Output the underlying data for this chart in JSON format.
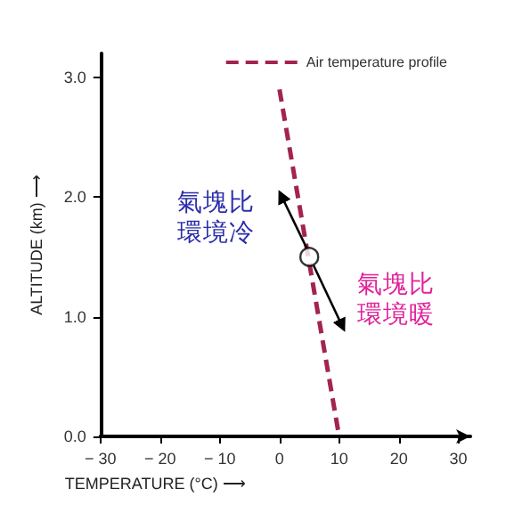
{
  "chart_data": {
    "type": "line",
    "xlabel": "TEMPERATURE (°C) ⟶",
    "ylabel": "ALTITUDE (km) ⟶",
    "series": [
      {
        "name": "Air temperature profile",
        "color": "#a3244f",
        "x": [
          0,
          10
        ],
        "values": [
          2.9,
          0
        ],
        "marker": "none",
        "line_style": "dashed"
      },
      {
        "type": "scatter",
        "color": "#000000",
        "x": [
          5
        ],
        "values": [
          1.5
        ],
        "marker": "circle"
      }
    ],
    "annotations": [
      "氣塊比環境冷",
      "氣塊比環境暖"
    ],
    "xlim": [
      -30,
      32
    ],
    "xticks": [
      {
        "value": -30,
        "label": "− 30"
      },
      {
        "value": -20,
        "label": "− 20"
      },
      {
        "value": -10,
        "label": "− 10"
      },
      0,
      10,
      20,
      30
    ],
    "ylim": [
      0,
      3.2
    ],
    "yticks": [
      {
        "value": 0,
        "label": "0.0"
      },
      {
        "value": 1,
        "label": "1.0"
      },
      {
        "value": 2,
        "label": "2.0"
      },
      {
        "value": 3,
        "label": "3.0"
      }
    ],
    "grid": false,
    "legend": "top right"
  }
}
